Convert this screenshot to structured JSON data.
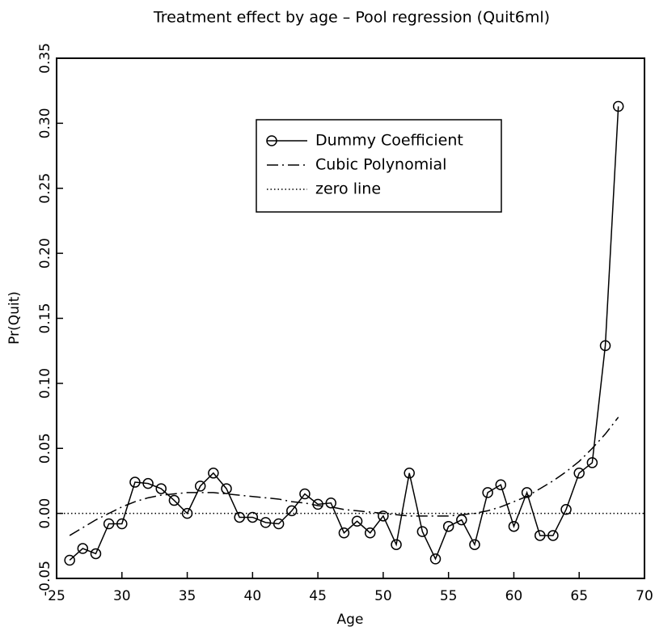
{
  "chart_data": {
    "type": "line",
    "title": "Treatment effect by age – Pool regression (Quit6ml)",
    "xlabel": "Age",
    "ylabel": "Pr(Quit)",
    "x": [
      26,
      27,
      28,
      29,
      30,
      31,
      32,
      33,
      34,
      35,
      36,
      37,
      38,
      39,
      40,
      41,
      42,
      43,
      44,
      45,
      46,
      47,
      48,
      49,
      50,
      51,
      52,
      53,
      54,
      55,
      56,
      57,
      58,
      59,
      60,
      61,
      62,
      63,
      64,
      65,
      66,
      67,
      68
    ],
    "series": [
      {
        "name": "Dummy Coefficient",
        "color": "#000000",
        "dash": "solid",
        "marker": "circle",
        "values": [
          -0.036,
          -0.027,
          -0.031,
          -0.008,
          -0.008,
          0.024,
          0.023,
          0.019,
          0.01,
          0.0,
          0.021,
          0.031,
          0.019,
          -0.003,
          -0.003,
          -0.007,
          -0.008,
          0.002,
          0.015,
          0.007,
          0.008,
          -0.015,
          -0.006,
          -0.015,
          -0.002,
          -0.024,
          0.031,
          -0.014,
          -0.035,
          -0.01,
          -0.005,
          -0.024,
          0.016,
          0.022,
          -0.01,
          0.016,
          -0.017,
          -0.017,
          0.003,
          0.031,
          0.039,
          0.129,
          0.313
        ]
      },
      {
        "name": "Cubic Polynomial",
        "color": "#000000",
        "dash": "dashdot",
        "values": [
          -0.017,
          -0.011,
          -0.005,
          0.0,
          0.005,
          0.009,
          0.012,
          0.014,
          0.015,
          0.016,
          0.016,
          0.016,
          0.015,
          0.014,
          0.013,
          0.012,
          0.011,
          0.009,
          0.008,
          0.006,
          0.005,
          0.003,
          0.002,
          0.001,
          0.0,
          -0.001,
          -0.002,
          -0.002,
          -0.002,
          -0.002,
          -0.001,
          0.0,
          0.002,
          0.005,
          0.009,
          0.013,
          0.019,
          0.025,
          0.032,
          0.04,
          0.05,
          0.061,
          0.074
        ]
      },
      {
        "name": "zero line",
        "color": "#000000",
        "dash": "dotted",
        "x": [
          25,
          70
        ],
        "values": [
          0,
          0
        ]
      }
    ],
    "xlim": [
      25,
      70
    ],
    "xticks": [
      25,
      30,
      35,
      40,
      45,
      50,
      55,
      60,
      65,
      70
    ],
    "ylim": [
      -0.05,
      0.35
    ],
    "yticks": [
      {
        "value": -0.05,
        "label": "-0.05"
      },
      {
        "value": 0,
        "label": "0.00"
      },
      {
        "value": 0.05,
        "label": "0.05"
      },
      {
        "value": 0.1,
        "label": "0.10"
      },
      {
        "value": 0.15,
        "label": "0.15"
      },
      {
        "value": 0.2,
        "label": "0.20"
      },
      {
        "value": 0.25,
        "label": "0.25"
      },
      {
        "value": 0.3,
        "label": "0.30"
      },
      {
        "value": 0.35,
        "label": "0.35"
      }
    ]
  }
}
